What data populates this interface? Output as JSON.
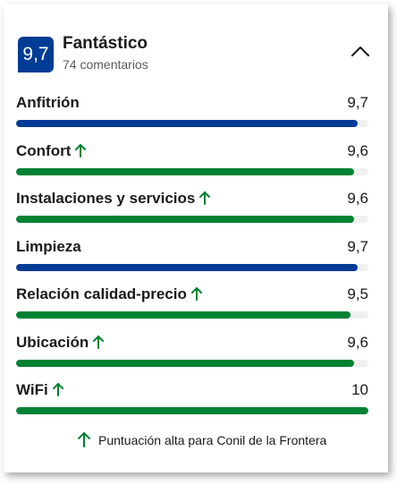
{
  "header": {
    "score": "9,7",
    "title": "Fantástico",
    "reviews": "74 comentarios"
  },
  "colors": {
    "blue": "#003b95",
    "green": "#008234",
    "track": "#f0f0f0"
  },
  "icons": {
    "collapse": "chevron-up-icon",
    "trend": "arrow-up-icon"
  },
  "categories": [
    {
      "label": "Anfitrión",
      "value": "9,7",
      "score": 9.7,
      "trend_up": false,
      "color": "blue"
    },
    {
      "label": "Confort",
      "value": "9,6",
      "score": 9.6,
      "trend_up": true,
      "color": "green"
    },
    {
      "label": "Instalaciones y servicios",
      "value": "9,6",
      "score": 9.6,
      "trend_up": true,
      "color": "green"
    },
    {
      "label": "Limpieza",
      "value": "9,7",
      "score": 9.7,
      "trend_up": false,
      "color": "blue"
    },
    {
      "label": "Relación calidad-precio",
      "value": "9,5",
      "score": 9.5,
      "trend_up": true,
      "color": "green"
    },
    {
      "label": "Ubicación",
      "value": "9,6",
      "score": 9.6,
      "trend_up": true,
      "color": "green"
    },
    {
      "label": "WiFi",
      "value": "10",
      "score": 10,
      "trend_up": true,
      "color": "green"
    }
  ],
  "max_score": 10,
  "footer": {
    "note": "Puntuación alta para Conil de la Frontera"
  }
}
